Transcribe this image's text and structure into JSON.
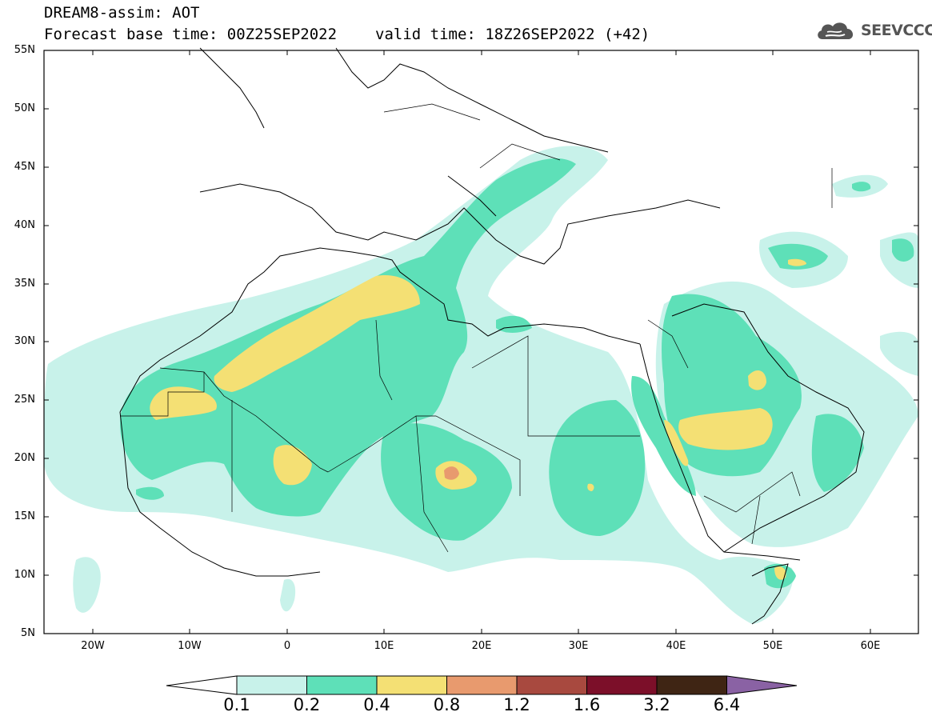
{
  "header": {
    "title": "DREAM8-assim: AOT",
    "base_time": "Forecast base time: 00Z25SEP2022",
    "valid_time": "valid time: 18Z26SEP2022 (+42)"
  },
  "logo": {
    "text": "SEEVCCC",
    "icon": "cloud-icon"
  },
  "map": {
    "lat_labels": [
      "55N",
      "50N",
      "45N",
      "40N",
      "35N",
      "30N",
      "25N",
      "20N",
      "15N",
      "10N",
      "5N"
    ],
    "lon_labels": [
      "20W",
      "10W",
      "0",
      "10E",
      "20E",
      "30E",
      "40E",
      "50E",
      "60E"
    ],
    "frame_color": "#000000"
  },
  "colorbar": {
    "labels": [
      "0.1",
      "0.2",
      "0.4",
      "0.8",
      "1.2",
      "1.6",
      "3.2",
      "6.4"
    ],
    "colors": [
      "#ffffff",
      "#c8f2ea",
      "#5ee0b8",
      "#f4e074",
      "#e89a6e",
      "#a8493f",
      "#7c0f29",
      "#3f2514",
      "#8a62a4"
    ]
  }
}
